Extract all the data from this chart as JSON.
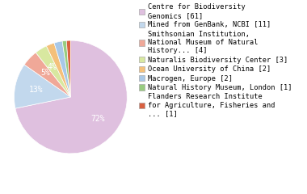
{
  "labels": [
    "Centre for Biodiversity\nGenomics [61]",
    "Mined from GenBank, NCBI [11]",
    "Smithsonian Institution,\nNational Museum of Natural\nHistory... [4]",
    "Naturalis Biodiversity Center [3]",
    "Ocean University of China [2]",
    "Macrogen, Europe [2]",
    "Natural History Museum, London [1]",
    "Flanders Research Institute\nfor Agriculture, Fisheries and\n... [1]"
  ],
  "values": [
    61,
    11,
    4,
    3,
    2,
    2,
    1,
    1
  ],
  "colors": [
    "#dfc0df",
    "#c2d8ed",
    "#f0a898",
    "#d8e8a0",
    "#f4c07a",
    "#a8c8e8",
    "#98cc80",
    "#d96040"
  ],
  "text_color": "#ffffff",
  "font_size_pct": 7,
  "legend_font_size": 6.2
}
